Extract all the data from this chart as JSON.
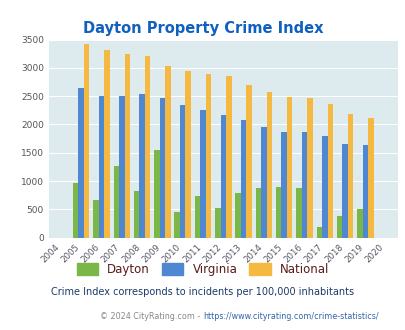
{
  "title": "Dayton Property Crime Index",
  "years": [
    "2004",
    "2005",
    "2006",
    "2007",
    "2008",
    "2009",
    "2010",
    "2011",
    "2012",
    "2013",
    "2014",
    "2015",
    "2016",
    "2017",
    "2018",
    "2019",
    "2020"
  ],
  "dayton": [
    0,
    960,
    660,
    1270,
    820,
    1550,
    450,
    730,
    530,
    780,
    880,
    890,
    880,
    190,
    380,
    500,
    0
  ],
  "virginia": [
    0,
    2650,
    2500,
    2500,
    2540,
    2460,
    2350,
    2260,
    2160,
    2070,
    1950,
    1870,
    1870,
    1790,
    1650,
    1630,
    0
  ],
  "national": [
    0,
    3420,
    3320,
    3250,
    3210,
    3040,
    2940,
    2900,
    2860,
    2700,
    2580,
    2490,
    2460,
    2360,
    2190,
    2110,
    0
  ],
  "dayton_color": "#7ab648",
  "virginia_color": "#4f87d0",
  "national_color": "#f5b942",
  "bg_color": "#ddeaee",
  "ylim": [
    0,
    3500
  ],
  "yticks": [
    0,
    500,
    1000,
    1500,
    2000,
    2500,
    3000,
    3500
  ],
  "subtitle": "Crime Index corresponds to incidents per 100,000 inhabitants",
  "footer_pre": "© 2024 CityRating.com - ",
  "footer_link": "https://www.cityrating.com/crime-statistics/",
  "bar_width": 0.27,
  "title_color": "#1060c0",
  "legend_text_color": "#5a1a1a",
  "subtitle_color": "#1a3a6a",
  "footer_color": "#888888",
  "footer_link_color": "#3366aa"
}
